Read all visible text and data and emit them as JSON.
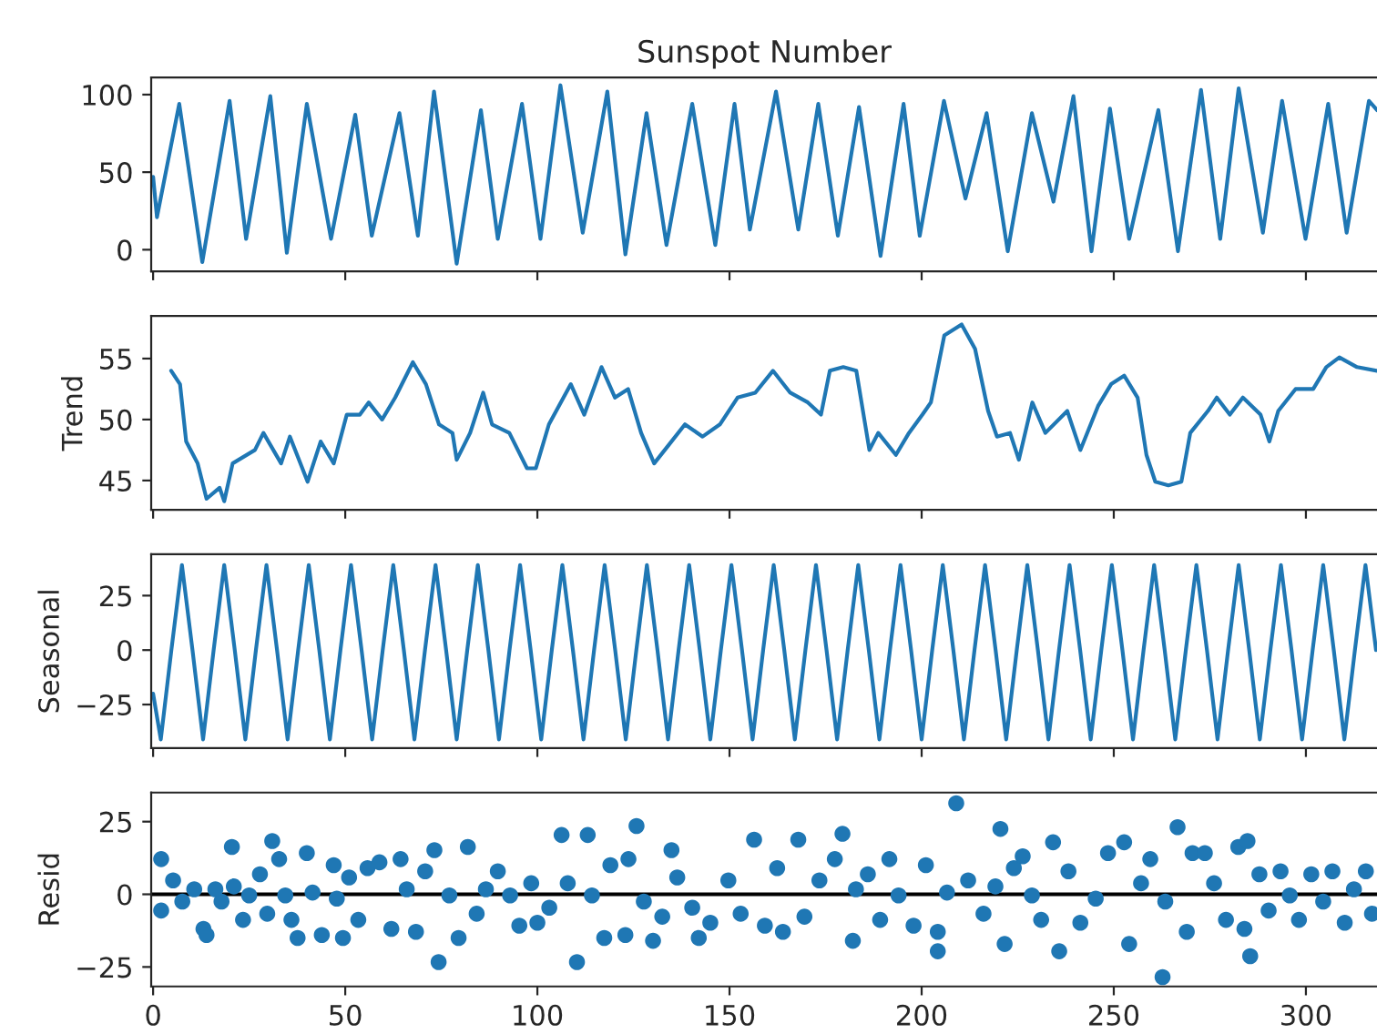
{
  "chart_data": [
    {
      "type": "line",
      "title": "Sunspot Number",
      "xlim": [
        -0.5,
        318.5
      ],
      "xticks": [
        0,
        50,
        100,
        150,
        200,
        250,
        300
      ],
      "ylim": [
        -14,
        111
      ],
      "yticks": [
        0,
        50,
        100
      ],
      "tick_labels": "y",
      "series": [
        {
          "color": "#1f77b4",
          "x": [
            0,
            1,
            6.8,
            12.8,
            19.9,
            24.2,
            30.5,
            34.8,
            40,
            46.3,
            52.6,
            56.9,
            64.1,
            68.9,
            73.1,
            79,
            85.3,
            89.7,
            96,
            100.8,
            106,
            111.8,
            118.2,
            122.9,
            128.4,
            133.6,
            140.3,
            146.3,
            151.3,
            155.3,
            162.1,
            167.9,
            173.1,
            178.2,
            183.7,
            189.3,
            195.3,
            199.5,
            205.8,
            211.4,
            216.9,
            222.4,
            228.7,
            234.3,
            239.5,
            244.2,
            249,
            254,
            261.6,
            266.7,
            272.7,
            277.7,
            282.5,
            288.8,
            293.8,
            299.9,
            305.8,
            310.6,
            316.4,
            318.5
          ],
          "values": [
            47,
            21,
            94,
            -8,
            96,
            7,
            99,
            -2,
            94,
            7,
            87,
            9,
            88,
            9,
            102,
            -9,
            90,
            7,
            94,
            7,
            106,
            11,
            102,
            -3,
            88,
            3,
            94,
            3,
            94,
            13,
            102,
            13,
            94,
            9,
            92,
            -4,
            94,
            9,
            96,
            33,
            88,
            -1,
            88,
            31,
            99,
            -1,
            91,
            7,
            90,
            -1,
            103,
            7,
            104,
            11,
            96,
            7,
            94,
            11,
            96,
            90
          ]
        }
      ]
    },
    {
      "type": "line",
      "ylabel": "Trend",
      "xlim": [
        -0.5,
        318.5
      ],
      "xticks": [
        0,
        50,
        100,
        150,
        200,
        250,
        300
      ],
      "ylim": [
        42.6,
        58.5
      ],
      "yticks": [
        45,
        50,
        55
      ],
      "tick_labels": "y",
      "series": [
        {
          "color": "#1f77b4",
          "x": [
            4.7,
            7,
            8.6,
            11.6,
            13.9,
            17.3,
            18.5,
            20.7,
            26.5,
            28.7,
            33.3,
            35.6,
            40.2,
            43.6,
            47,
            50.4,
            53.8,
            56.1,
            59.6,
            63,
            67.6,
            71,
            74.4,
            77.9,
            79,
            82.5,
            85.9,
            88.2,
            92.7,
            97.3,
            99.6,
            103,
            108.7,
            112.2,
            116.7,
            120.2,
            123.6,
            127,
            130.4,
            133.9,
            138.4,
            143,
            147.5,
            152.1,
            156.7,
            161.3,
            165.8,
            170.4,
            173.8,
            176.1,
            179.6,
            183,
            185.3,
            186.4,
            188.7,
            193.3,
            196.7,
            200.2,
            202.4,
            205.9,
            210.4,
            213.9,
            217.3,
            219.6,
            223,
            225.3,
            228.8,
            232.2,
            237.9,
            241.3,
            245.9,
            249.3,
            252.7,
            256.2,
            258.5,
            260.8,
            264.2,
            267.6,
            269.9,
            274.5,
            276.8,
            280.2,
            283.6,
            288.2,
            290.5,
            292.8,
            297.3,
            301.9,
            305.3,
            308.7,
            313.3,
            318.5
          ],
          "values": [
            54,
            52.9,
            48.2,
            46.4,
            43.5,
            44.4,
            43.3,
            46.4,
            47.5,
            48.9,
            46.4,
            48.6,
            44.9,
            48.2,
            46.4,
            50.4,
            50.4,
            51.4,
            50,
            51.8,
            54.7,
            52.9,
            49.6,
            48.9,
            46.7,
            48.9,
            52.2,
            49.6,
            48.9,
            46,
            46,
            49.6,
            52.9,
            50.4,
            54.3,
            51.8,
            52.5,
            48.9,
            46.4,
            47.8,
            49.6,
            48.6,
            49.6,
            51.8,
            52.2,
            54,
            52.2,
            51.4,
            50.4,
            54,
            54.3,
            54,
            49.6,
            47.5,
            48.9,
            47.1,
            48.9,
            50.4,
            51.4,
            56.9,
            57.8,
            55.8,
            50.7,
            48.6,
            48.9,
            46.7,
            51.4,
            48.9,
            50.7,
            47.5,
            51.1,
            52.9,
            53.6,
            51.8,
            47.1,
            44.9,
            44.6,
            44.9,
            48.9,
            50.7,
            51.8,
            50.4,
            51.8,
            50.4,
            48.2,
            50.7,
            52.5,
            52.5,
            54.3,
            55.1,
            54.3,
            54
          ]
        }
      ]
    },
    {
      "type": "line",
      "ylabel": "Seasonal",
      "xlim": [
        -0.5,
        318.5
      ],
      "xticks": [
        0,
        50,
        100,
        150,
        200,
        250,
        300
      ],
      "ylim": [
        -45,
        44
      ],
      "yticks": [
        {
          "value": -25,
          "label": "−25"
        },
        0,
        25
      ],
      "tick_labels": "y",
      "series": [
        {
          "color": "#1f77b4",
          "x": [
            0,
            2,
            4.75,
            7.5,
            10.25,
            13,
            15.75,
            18.5,
            21.25,
            24,
            26.75,
            29.5,
            32.25,
            35,
            37.75,
            40.5,
            43.25,
            46,
            48.75,
            51.5,
            54.25,
            57,
            59.75,
            62.5,
            65.25,
            68,
            70.75,
            73.5,
            76.25,
            79,
            81.75,
            84.5,
            87.25,
            90,
            92.75,
            95.5,
            98.25,
            101,
            103.75,
            106.5,
            109.25,
            112,
            114.75,
            117.5,
            120.25,
            123,
            125.75,
            128.5,
            131.25,
            134,
            136.75,
            139.5,
            142.25,
            145,
            147.75,
            150.5,
            153.25,
            156,
            158.75,
            161.5,
            164.25,
            167,
            169.75,
            172.5,
            175.25,
            178,
            180.75,
            183.5,
            186.25,
            189,
            191.75,
            194.5,
            197.25,
            200,
            202.75,
            205.5,
            208.25,
            211,
            213.75,
            216.5,
            219.25,
            222,
            224.75,
            227.5,
            230.25,
            233,
            235.75,
            238.5,
            241.25,
            244,
            246.75,
            249.5,
            252.25,
            255,
            257.75,
            260.5,
            263.25,
            266,
            268.75,
            271.5,
            274.25,
            277,
            279.75,
            282.5,
            285.25,
            288,
            290.75,
            293.5,
            296.25,
            299,
            301.75,
            304.5,
            307.25,
            310,
            312.75,
            315.5,
            318.25
          ],
          "values": [
            -20,
            -41,
            0,
            39,
            0,
            -41,
            0,
            39,
            0,
            -41,
            0,
            39,
            0,
            -41,
            0,
            39,
            0,
            -41,
            0,
            39,
            0,
            -41,
            0,
            39,
            0,
            -41,
            0,
            39,
            0,
            -41,
            0,
            39,
            0,
            -41,
            0,
            39,
            0,
            -41,
            0,
            39,
            0,
            -41,
            0,
            39,
            0,
            -41,
            0,
            39,
            0,
            -41,
            0,
            39,
            0,
            -41,
            0,
            39,
            0,
            -41,
            0,
            39,
            0,
            -41,
            0,
            39,
            0,
            -41,
            0,
            39,
            0,
            -41,
            0,
            39,
            0,
            -41,
            0,
            39,
            0,
            -41,
            0,
            39,
            0,
            -41,
            0,
            39,
            0,
            -41,
            0,
            39,
            0,
            -41,
            0,
            39,
            0,
            -41,
            0,
            39,
            0,
            -41,
            0,
            39,
            0,
            -41,
            0,
            39,
            0,
            -41,
            0,
            39,
            0,
            -41,
            0,
            39,
            0,
            -41,
            0,
            39,
            0
          ]
        }
      ]
    },
    {
      "type": "scatter",
      "ylabel": "Resid",
      "marker": "circle",
      "xlim": [
        -0.5,
        318.5
      ],
      "xticks": [
        0,
        50,
        100,
        150,
        200,
        250,
        300
      ],
      "ylim": [
        -31.7,
        35
      ],
      "yticks": [
        {
          "value": -25,
          "label": "−25"
        },
        0,
        25
      ],
      "ref_lines": [
        {
          "axis": "y",
          "value": 0,
          "color": "#000000"
        }
      ],
      "series": [
        {
          "color": "#1f77b4",
          "x": [
            2.1,
            2.1,
            5.2,
            7.6,
            10.7,
            13.1,
            13.9,
            16.2,
            17.8,
            20.5,
            21,
            23.4,
            25,
            27.8,
            29.7,
            31,
            32.8,
            34.4,
            36,
            37.6,
            40,
            41.5,
            43.9,
            47,
            47.8,
            49.4,
            51,
            53.4,
            55.8,
            58.9,
            62,
            64.4,
            66,
            68.4,
            70.8,
            73.2,
            74.3,
            77.1,
            79.5,
            81.9,
            84.2,
            86.6,
            89.7,
            92.9,
            95.3,
            98.4,
            100,
            103.1,
            106.3,
            107.9,
            110.3,
            113.1,
            114.2,
            117.4,
            119,
            122.9,
            123.7,
            125.8,
            127.7,
            130.1,
            132.5,
            134.9,
            136.4,
            140.3,
            142,
            145,
            149.7,
            152.9,
            156.4,
            159.2,
            162.4,
            163.9,
            167.9,
            169.5,
            173.4,
            177.4,
            179.4,
            182.1,
            182.9,
            186,
            189.2,
            191.6,
            194,
            197.9,
            201.1,
            204.2,
            204.2,
            206.6,
            209,
            212.1,
            216.1,
            219.2,
            220.5,
            221.6,
            224,
            226.3,
            228.7,
            231.1,
            234.2,
            235.8,
            238.2,
            241.3,
            245.3,
            248.5,
            252.7,
            254,
            257.1,
            259.5,
            262.7,
            263.4,
            266.6,
            269,
            270.5,
            273.7,
            276.1,
            279.2,
            282.4,
            284,
            284.8,
            285.5,
            287.9,
            290.3,
            293.4,
            295.8,
            298.2,
            301.4,
            304.5,
            306.9,
            310.1,
            312.5,
            315.6,
            317.2
          ],
          "values": [
            12.1,
            -5.6,
            4.8,
            -2.5,
            1.7,
            -11.9,
            -14,
            1.7,
            -2.5,
            16.3,
            2.7,
            -8.8,
            -0.4,
            6.9,
            -6.7,
            18.3,
            12.1,
            -0.4,
            -8.8,
            -15,
            14.2,
            0.6,
            -14,
            10,
            -1.5,
            -15,
            5.8,
            -8.8,
            9,
            11,
            -11.9,
            12.1,
            1.7,
            -12.9,
            7.9,
            15.2,
            -23.3,
            -0.4,
            -15,
            16.3,
            -6.7,
            1.7,
            7.9,
            -0.4,
            -10.8,
            3.8,
            -9.8,
            -4.6,
            20.4,
            3.8,
            -23.3,
            20.4,
            -0.4,
            -15,
            10,
            -14,
            12.1,
            23.5,
            -2.5,
            -16,
            -7.7,
            15.2,
            5.8,
            -4.6,
            -15,
            -9.8,
            4.8,
            -6.7,
            18.8,
            -10.8,
            9,
            -12.9,
            18.8,
            -7.7,
            4.8,
            12.1,
            20.8,
            -16,
            1.7,
            6.9,
            -8.8,
            12.1,
            -0.4,
            -10.8,
            10,
            -12.9,
            -19.6,
            0.6,
            31.3,
            4.8,
            -6.7,
            2.7,
            22.5,
            -17.1,
            9,
            13.1,
            -0.4,
            -8.8,
            17.9,
            -19.6,
            7.9,
            -9.8,
            -1.5,
            14.2,
            17.9,
            -17.1,
            3.8,
            12.1,
            -28.5,
            -2.5,
            23.1,
            -12.9,
            14.2,
            14.2,
            3.8,
            -8.8,
            16.3,
            -11.9,
            18.3,
            -21.3,
            6.9,
            -5.6,
            7.9,
            -0.4,
            -8.8,
            6.9,
            -2.5,
            7.9,
            -9.8,
            1.7,
            7.9,
            -6.7
          ]
        }
      ]
    }
  ]
}
